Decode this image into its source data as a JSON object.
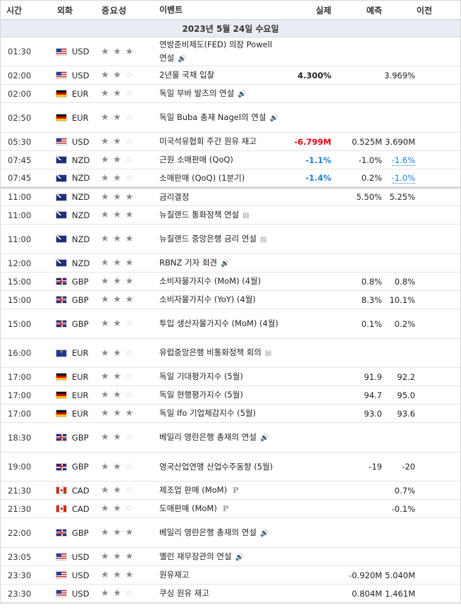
{
  "header": {
    "time": "시간",
    "currency": "외화",
    "importance": "중요성",
    "event": "이벤트",
    "actual": "실제",
    "forecast": "예측",
    "previous": "이전"
  },
  "date": "2023년 5월 24일 수요일",
  "rows": [
    {
      "time": "01:30",
      "currency": "USD",
      "flag": "us",
      "stars": 3,
      "event": "연방준비제도(FED) 의장 Powell 연설",
      "icon": "speaker",
      "actual": "",
      "actual_style": "",
      "forecast": "",
      "previous": "",
      "previous_style": "",
      "height": 41
    },
    {
      "time": "02:00",
      "currency": "USD",
      "flag": "us",
      "stars": 2,
      "event": "2년물 국채 입찰",
      "icon": "",
      "actual": "4.300%",
      "actual_style": "",
      "forecast": "",
      "previous": "3.969%",
      "previous_style": "",
      "height": 26
    },
    {
      "time": "02:00",
      "currency": "EUR",
      "flag": "de",
      "stars": 2,
      "event": "독일 부바 발즈의 연설",
      "icon": "speaker",
      "actual": "",
      "actual_style": "",
      "forecast": "",
      "previous": "",
      "previous_style": "",
      "height": 26
    },
    {
      "time": "02:50",
      "currency": "EUR",
      "flag": "de",
      "stars": 2,
      "event": "독일 Buba 총재 Nagel의 연설",
      "icon": "speaker",
      "actual": "",
      "actual_style": "",
      "forecast": "",
      "previous": "",
      "previous_style": "",
      "height": 42
    },
    {
      "time": "05:30",
      "currency": "USD",
      "flag": "us",
      "stars": 2,
      "event": "미국석유협회 주간 원유 재고",
      "icon": "",
      "actual": "-6.799M",
      "actual_style": "neg",
      "forecast": "0.525M",
      "previous": "3.690M",
      "previous_style": "",
      "height": 26
    },
    {
      "time": "07:45",
      "currency": "NZD",
      "flag": "nz",
      "stars": 2,
      "event": "근원 소매판매 (QoQ)",
      "icon": "",
      "actual": "-1.1%",
      "actual_style": "blue",
      "forecast": "-1.0%",
      "previous": "-1.6%",
      "previous_style": "bluedot",
      "height": 26
    },
    {
      "time": "07:45",
      "currency": "NZD",
      "flag": "nz",
      "stars": 2,
      "event": "소매판매 (QoQ) (1분기)",
      "icon": "",
      "actual": "-1.4%",
      "actual_style": "blue",
      "forecast": "0.2%",
      "previous": "-1.0%",
      "previous_style": "bluedot",
      "height": 25
    },
    {
      "time": "11:00",
      "currency": "NZD",
      "flag": "nz",
      "stars": 3,
      "event": "금리결정",
      "icon": "",
      "actual": "",
      "actual_style": "",
      "forecast": "5.50%",
      "previous": "5.25%",
      "previous_style": "",
      "height": 27,
      "sep": true
    },
    {
      "time": "11:00",
      "currency": "NZD",
      "flag": "nz",
      "stars": 3,
      "event": "뉴질랜드 통화정책 연설",
      "icon": "doc",
      "actual": "",
      "actual_style": "",
      "forecast": "",
      "previous": "",
      "previous_style": "",
      "height": 26
    },
    {
      "time": "11:00",
      "currency": "NZD",
      "flag": "nz",
      "stars": 3,
      "event": "뉴질랜드 중앙은행 금리 연설",
      "icon": "doc",
      "actual": "",
      "actual_style": "",
      "forecast": "",
      "previous": "",
      "previous_style": "",
      "height": 42
    },
    {
      "time": "12:00",
      "currency": "NZD",
      "flag": "nz",
      "stars": 3,
      "event": "RBNZ 기자 회견",
      "icon": "speaker",
      "actual": "",
      "actual_style": "",
      "forecast": "",
      "previous": "",
      "previous_style": "",
      "height": 26
    },
    {
      "time": "15:00",
      "currency": "GBP",
      "flag": "gb",
      "stars": 3,
      "event": "소비자물가지수 (MoM) (4월)",
      "icon": "",
      "actual": "",
      "actual_style": "",
      "forecast": "0.8%",
      "previous": "0.8%",
      "previous_style": "",
      "height": 26
    },
    {
      "time": "15:00",
      "currency": "GBP",
      "flag": "gb",
      "stars": 3,
      "event": "소비자물가지수 (YoY) (4월)",
      "icon": "",
      "actual": "",
      "actual_style": "",
      "forecast": "8.3%",
      "previous": "10.1%",
      "previous_style": "",
      "height": 26
    },
    {
      "time": "15:00",
      "currency": "GBP",
      "flag": "gb",
      "stars": 2,
      "event": "투입 생산자물가지수 (MoM) (4월)",
      "icon": "",
      "actual": "",
      "actual_style": "",
      "forecast": "0.1%",
      "previous": "0.2%",
      "previous_style": "",
      "height": 42
    },
    {
      "time": "16:00",
      "currency": "EUR",
      "flag": "eu",
      "stars": 2,
      "event": "유럽중앙은행 비통화정책 회의",
      "icon": "doc",
      "actual": "",
      "actual_style": "",
      "forecast": "",
      "previous": "",
      "previous_style": "",
      "height": 41
    },
    {
      "time": "17:00",
      "currency": "EUR",
      "flag": "de",
      "stars": 2,
      "event": "독일 기대평가지수 (5월)",
      "icon": "",
      "actual": "",
      "actual_style": "",
      "forecast": "91.9",
      "previous": "92.2",
      "previous_style": "",
      "height": 26
    },
    {
      "time": "17:00",
      "currency": "EUR",
      "flag": "de",
      "stars": 2,
      "event": "독일 현행평가지수 (5월)",
      "icon": "",
      "actual": "",
      "actual_style": "",
      "forecast": "94.7",
      "previous": "95.0",
      "previous_style": "",
      "height": 26
    },
    {
      "time": "17:00",
      "currency": "EUR",
      "flag": "de",
      "stars": 3,
      "event": "독일 Ifo 기업체감지수 (5월)",
      "icon": "",
      "actual": "",
      "actual_style": "",
      "forecast": "93.0",
      "previous": "93.6",
      "previous_style": "",
      "height": 26
    },
    {
      "time": "18:30",
      "currency": "GBP",
      "flag": "gb",
      "stars": 2,
      "event": "베일리 영란은행 총재의 연설",
      "icon": "speaker",
      "actual": "",
      "actual_style": "",
      "forecast": "",
      "previous": "",
      "previous_style": "",
      "height": 42
    },
    {
      "time": "19:00",
      "currency": "GBP",
      "flag": "gb",
      "stars": 2,
      "event": "영국산업연맹 산업수주동향 (5월)",
      "icon": "",
      "actual": "",
      "actual_style": "",
      "forecast": "-19",
      "previous": "-20",
      "previous_style": "",
      "height": 41
    },
    {
      "time": "21:30",
      "currency": "CAD",
      "flag": "ca",
      "stars": 2,
      "event": "제조업 판매 (MoM)",
      "icon": "p",
      "actual": "",
      "actual_style": "",
      "forecast": "",
      "previous": "0.7%",
      "previous_style": "",
      "height": 26
    },
    {
      "time": "21:30",
      "currency": "CAD",
      "flag": "ca",
      "stars": 2,
      "event": "도매판매 (MoM)",
      "icon": "p",
      "actual": "",
      "actual_style": "",
      "forecast": "",
      "previous": "-0.1%",
      "previous_style": "",
      "height": 26
    },
    {
      "time": "22:00",
      "currency": "GBP",
      "flag": "gb",
      "stars": 3,
      "event": "베일리 영란은행 총재의 연설",
      "icon": "speaker",
      "actual": "",
      "actual_style": "",
      "forecast": "",
      "previous": "",
      "previous_style": "",
      "height": 42
    },
    {
      "time": "23:05",
      "currency": "USD",
      "flag": "us",
      "stars": 3,
      "event": "옐런 재무장관의 연설",
      "icon": "speaker",
      "actual": "",
      "actual_style": "",
      "forecast": "",
      "previous": "",
      "previous_style": "",
      "height": 26
    },
    {
      "time": "23:30",
      "currency": "USD",
      "flag": "us",
      "stars": 3,
      "event": "원유재고",
      "icon": "",
      "actual": "",
      "actual_style": "",
      "forecast": "-0.920M",
      "previous": "5.040M",
      "previous_style": "",
      "height": 26
    },
    {
      "time": "23:30",
      "currency": "USD",
      "flag": "us",
      "stars": 2,
      "event": "쿠싱 원유 재고",
      "icon": "",
      "actual": "",
      "actual_style": "",
      "forecast": "0.804M",
      "previous": "1.461M",
      "previous_style": "",
      "height": 26
    }
  ]
}
